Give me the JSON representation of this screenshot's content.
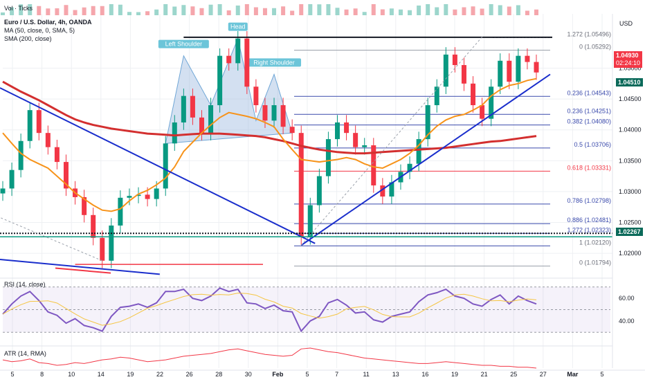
{
  "header": {
    "vol_label": "Vol · Ticks",
    "symbol_line": "Euro / U.S. Dollar, 4h, OANDA",
    "ma_line": "MA (50, close, 0, SMA, 5)",
    "sma_line": "SMA (200, close)",
    "currency": "USD"
  },
  "colors": {
    "up": "#089981",
    "down": "#f23645",
    "ma50": "#f7931a",
    "sma200": "#d32f2f",
    "trend": "#1a2ecc",
    "fib": "#3949ab",
    "rsi": "#7e57c2",
    "pattern": "#9ebbe0"
  },
  "price_axis": {
    "ticks": [
      "1.05000",
      "1.04500",
      "1.04000",
      "1.03500",
      "1.03000",
      "1.02500",
      "1.02000"
    ],
    "current_price": "1.04930",
    "countdown": "02:24:10",
    "level_1": "1.04510",
    "level_2": "1.02267"
  },
  "time_axis": {
    "labels": [
      "5",
      "8",
      "10",
      "14",
      "19",
      "22",
      "26",
      "28",
      "30",
      "Feb",
      "5",
      "7",
      "11",
      "13",
      "16",
      "19",
      "21",
      "25",
      "27",
      "Mar",
      "5"
    ]
  },
  "annotations": {
    "left_shoulder": "Left Shoulder",
    "head": "Head",
    "right_shoulder": "Right Shoulder"
  },
  "fib_levels": [
    {
      "label": "1.272 (1.05496)",
      "price": 1.05496
    },
    {
      "label": "0 (1.05292)",
      "price": 1.05292
    },
    {
      "label": "0.236 (1.04543)",
      "price": 1.04543
    },
    {
      "label": "0.236 (1.04251)",
      "price": 1.04251
    },
    {
      "label": "0.382 (1.04080)",
      "price": 1.0408
    },
    {
      "label": "0.5 (1.03706)",
      "price": 1.03706
    },
    {
      "label": "0.618 (1.03331)",
      "price": 1.03331
    },
    {
      "label": "0.786 (1.02798)",
      "price": 1.02798
    },
    {
      "label": "0.886 (1.02481)",
      "price": 1.02481
    },
    {
      "label": "1.272 (1.02323)",
      "price": 1.02323
    },
    {
      "label": "1 (1.02120)",
      "price": 1.0212
    },
    {
      "label": "0 (1.01794)",
      "price": 1.01794
    }
  ],
  "rsi_panel": {
    "label": "RSI (14, close)",
    "ticks": [
      "60.00",
      "40.00"
    ]
  },
  "atr_panel": {
    "label": "ATR (14, RMA)"
  },
  "chart_data": {
    "type": "line",
    "x": [
      0,
      1,
      2,
      3,
      4,
      5,
      6,
      7,
      8,
      9,
      10,
      11,
      12,
      13,
      14,
      15,
      16,
      17,
      18,
      19,
      20,
      21,
      22,
      23,
      24,
      25,
      26,
      27,
      28,
      29,
      30,
      31,
      32,
      33,
      34,
      35,
      36,
      37,
      38,
      39,
      40,
      41,
      42,
      43,
      44,
      45,
      46,
      47,
      48,
      49,
      50,
      51,
      52,
      53,
      54,
      55,
      56,
      57,
      58,
      59
    ],
    "series": [
      {
        "values": [
          1.0305,
          1.0335,
          1.0382,
          1.0432,
          1.0395,
          1.0372,
          1.0348,
          1.0305,
          1.0291,
          1.0262,
          1.0225,
          1.0188,
          1.0245,
          1.029,
          1.0293,
          1.0295,
          1.0288,
          1.0305,
          1.0378,
          1.0412,
          1.0455,
          1.042,
          1.0395,
          1.044,
          1.052,
          1.0508,
          1.0548,
          1.047,
          1.044,
          1.0415,
          1.044,
          1.0405,
          1.0395,
          1.0226,
          1.0278,
          1.0325,
          1.0385,
          1.0412,
          1.0395,
          1.0372,
          1.0375,
          1.031,
          1.0292,
          1.0315,
          1.0332,
          1.0345,
          1.0385,
          1.044,
          1.047,
          1.0522,
          1.0505,
          1.0475,
          1.044,
          1.0418,
          1.047,
          1.0512,
          1.0478,
          1.052,
          1.051,
          1.0493
        ]
      },
      {
        "values": [
          1.0395,
          1.0378,
          1.0362,
          1.0352,
          1.0345,
          1.0338,
          1.0325,
          1.0312,
          1.0298,
          1.0288,
          1.0278,
          1.027,
          1.0268,
          1.0272,
          1.0285,
          1.0296,
          1.0302,
          1.0311,
          1.0322,
          1.034,
          1.0365,
          1.038,
          1.0395,
          1.0408,
          1.042,
          1.0428,
          1.0425,
          1.0422,
          1.0418,
          1.0412,
          1.0405,
          1.0385,
          1.0368,
          1.0352,
          1.035,
          1.0348,
          1.035,
          1.0352,
          1.0355,
          1.0352,
          1.0345,
          1.034,
          1.0338,
          1.0345,
          1.0352,
          1.0362,
          1.0375,
          1.0392,
          1.0406,
          1.0416,
          1.0422,
          1.0425,
          1.0432,
          1.044,
          1.0455,
          1.0465,
          1.0472,
          1.0475,
          1.048,
          1.0483
        ]
      },
      {
        "values": [
          1.0478,
          1.047,
          1.0462,
          1.0455,
          1.0448,
          1.044,
          1.0432,
          1.0424,
          1.0417,
          1.0412,
          1.0408,
          1.0405,
          1.0402,
          1.04,
          1.0398,
          1.0396,
          1.0394,
          1.0393,
          1.0392,
          1.0391,
          1.0392,
          1.0393,
          1.0394,
          1.0394,
          1.0394,
          1.0393,
          1.0392,
          1.0391,
          1.039,
          1.0388,
          1.0385,
          1.0382,
          1.0378,
          1.0374,
          1.0371,
          1.0368,
          1.0366,
          1.0364,
          1.0363,
          1.0362,
          1.0362,
          1.0363,
          1.0364,
          1.0365,
          1.0366,
          1.0367,
          1.0368,
          1.0369,
          1.037,
          1.0371,
          1.0373,
          1.0375,
          1.0377,
          1.0379,
          1.0381,
          1.0382,
          1.0384,
          1.0386,
          1.0388,
          1.039
        ]
      }
    ],
    "rsi": [
      46,
      55,
      62,
      66,
      58,
      48,
      45,
      38,
      42,
      36,
      34,
      31,
      44,
      52,
      53,
      55,
      52,
      56,
      66,
      66,
      68,
      60,
      58,
      62,
      69,
      66,
      68,
      56,
      55,
      51,
      54,
      49,
      48,
      31,
      40,
      44,
      56,
      59,
      54,
      47,
      48,
      41,
      39,
      44,
      46,
      48,
      57,
      63,
      65,
      68,
      62,
      60,
      55,
      53,
      59,
      63,
      55,
      62,
      58,
      55
    ],
    "atr": [
      6.4,
      6.2,
      6.3,
      6.5,
      6.1,
      6.0,
      5.8,
      5.9,
      6.1,
      6.0,
      6.2,
      6.4,
      6.5,
      6.7,
      6.6,
      6.4,
      6.2,
      6.3,
      6.4,
      6.6,
      6.8,
      6.9,
      7.0,
      7.1,
      7.3,
      7.5,
      7.6,
      7.4,
      7.2,
      7.0,
      6.9,
      6.8,
      6.9,
      7.6,
      7.7,
      7.5,
      7.3,
      7.2,
      7.0,
      6.8,
      6.6,
      6.5,
      6.4,
      6.3,
      6.2,
      6.1,
      6.0,
      6.0,
      6.1,
      6.2,
      6.1,
      6.0,
      5.9,
      5.8,
      5.8,
      5.7,
      5.7,
      5.6,
      5.6,
      5.5
    ],
    "ylim": [
      1.0162,
      1.0588
    ],
    "rsi_ylim": [
      24,
      76
    ],
    "grid": true,
    "legend_position": "top-left"
  }
}
